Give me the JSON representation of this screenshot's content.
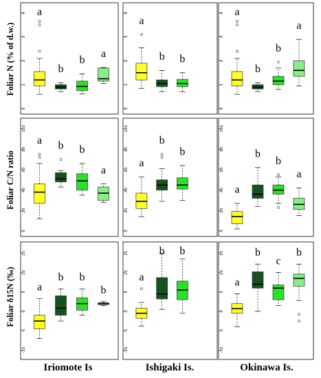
{
  "colors": {
    "yellow": "#ffff22",
    "darkgreen": "#14531c",
    "green": "#29e129",
    "lightgreen": "#88ee88"
  },
  "row_labels": [
    "Foliar N (% of d.w.)",
    "Foliar C/N ratio",
    "Foliar δ15N (‰)"
  ],
  "column_labels": [
    "Iriomote Is",
    "Ishigaki Is.",
    "Okinawa Is."
  ],
  "chart_data": [
    {
      "type": "box",
      "row": 0,
      "col": 0,
      "ylim": [
        0,
        4.2
      ],
      "yticks": [
        0,
        1,
        2,
        3,
        4
      ],
      "boxes": [
        {
          "color": "yellow",
          "whislo": 0.6,
          "q1": 0.95,
          "med": 1.2,
          "q3": 1.55,
          "whishi": 2.1,
          "fliers": [
            2.4,
            3.5,
            3.65
          ],
          "letter": "a"
        },
        {
          "color": "darkgreen",
          "whislo": 0.7,
          "q1": 0.82,
          "med": 0.9,
          "q3": 1.0,
          "whishi": 1.08,
          "fliers": [],
          "letter": "b"
        },
        {
          "color": "green",
          "whislo": 0.62,
          "q1": 0.75,
          "med": 0.93,
          "q3": 1.15,
          "whishi": 1.45,
          "fliers": [],
          "letter": "b"
        },
        {
          "color": "lightgreen",
          "whislo": 1.05,
          "q1": 1.15,
          "med": 1.25,
          "q3": 1.7,
          "whishi": 1.72,
          "fliers": [],
          "letter": "a"
        }
      ]
    },
    {
      "type": "box",
      "row": 0,
      "col": 1,
      "ylim": [
        0,
        4.2
      ],
      "yticks": [
        0,
        1,
        2,
        3,
        4
      ],
      "boxes": [
        {
          "color": "yellow",
          "whislo": 0.85,
          "q1": 1.2,
          "med": 1.5,
          "q3": 1.9,
          "whishi": 2.55,
          "fliers": [
            3.1
          ],
          "letter": "a"
        },
        {
          "color": "darkgreen",
          "whislo": 0.7,
          "q1": 0.92,
          "med": 1.05,
          "q3": 1.2,
          "whishi": 1.6,
          "fliers": [],
          "letter": "b"
        },
        {
          "color": "green",
          "whislo": 0.7,
          "q1": 0.92,
          "med": 1.05,
          "q3": 1.22,
          "whishi": 1.5,
          "fliers": [],
          "letter": "b"
        }
      ]
    },
    {
      "type": "box",
      "row": 0,
      "col": 2,
      "ylim": [
        0,
        4.2
      ],
      "yticks": [
        0,
        1,
        2,
        3,
        4
      ],
      "boxes": [
        {
          "color": "yellow",
          "whislo": 0.6,
          "q1": 0.95,
          "med": 1.2,
          "q3": 1.55,
          "whishi": 2.1,
          "fliers": [
            2.4,
            3.5,
            3.65
          ],
          "letter": "a"
        },
        {
          "color": "darkgreen",
          "whislo": 0.7,
          "q1": 0.82,
          "med": 0.9,
          "q3": 1.0,
          "whishi": 1.08,
          "fliers": [],
          "letter": "b"
        },
        {
          "color": "green",
          "whislo": 0.8,
          "q1": 1.0,
          "med": 1.15,
          "q3": 1.35,
          "whishi": 1.7,
          "fliers": [
            1.95
          ],
          "letter": "b"
        },
        {
          "color": "lightgreen",
          "whislo": 0.95,
          "q1": 1.35,
          "med": 1.6,
          "q3": 2.0,
          "whishi": 2.9,
          "fliers": [],
          "letter": "a"
        }
      ]
    },
    {
      "type": "box",
      "row": 1,
      "col": 0,
      "ylim": [
        0,
        105
      ],
      "yticks": [
        0,
        20,
        40,
        60,
        80,
        100
      ],
      "boxes": [
        {
          "color": "yellow",
          "whislo": 12,
          "q1": 27,
          "med": 38,
          "q3": 46,
          "whishi": 66,
          "fliers": [
            72,
            75
          ],
          "letter": "a"
        },
        {
          "color": "darkgreen",
          "whislo": 43,
          "q1": 48,
          "med": 51,
          "q3": 57,
          "whishi": 59,
          "fliers": [
            70
          ],
          "letter": "b"
        },
        {
          "color": "green",
          "whislo": 35,
          "q1": 40,
          "med": 49,
          "q3": 56,
          "whishi": 66,
          "fliers": [],
          "letter": "b"
        },
        {
          "color": "lightgreen",
          "whislo": 28,
          "q1": 30,
          "med": 37,
          "q3": 43,
          "whishi": 46,
          "fliers": [],
          "letter": "a"
        }
      ]
    },
    {
      "type": "box",
      "row": 1,
      "col": 1,
      "ylim": [
        0,
        105
      ],
      "yticks": [
        0,
        20,
        40,
        60,
        80,
        100
      ],
      "boxes": [
        {
          "color": "yellow",
          "whislo": 14,
          "q1": 22,
          "med": 29,
          "q3": 37,
          "whishi": 53,
          "fliers": [],
          "letter": "a"
        },
        {
          "color": "darkgreen",
          "whislo": 29,
          "q1": 40,
          "med": 45,
          "q3": 50,
          "whishi": 61,
          "fliers": [
            72,
            75
          ],
          "letter": "b"
        },
        {
          "color": "green",
          "whislo": 30,
          "q1": 41,
          "med": 45,
          "q3": 52,
          "whishi": 64,
          "fliers": [],
          "letter": "b"
        }
      ]
    },
    {
      "type": "box",
      "row": 1,
      "col": 2,
      "ylim": [
        0,
        105
      ],
      "yticks": [
        0,
        20,
        40,
        60,
        80,
        100
      ],
      "boxes": [
        {
          "color": "yellow",
          "whislo": 2,
          "q1": 7,
          "med": 14,
          "q3": 19,
          "whishi": 27,
          "fliers": [],
          "letter": "a"
        },
        {
          "color": "darkgreen",
          "whislo": 24,
          "q1": 32,
          "med": 36,
          "q3": 45,
          "whishi": 62,
          "fliers": [],
          "letter": "b"
        },
        {
          "color": "green",
          "whislo": 27,
          "q1": 36,
          "med": 40,
          "q3": 45,
          "whishi": 53,
          "fliers": [
            55,
            23
          ],
          "letter": "b"
        },
        {
          "color": "lightgreen",
          "whislo": 15,
          "q1": 21,
          "med": 26,
          "q3": 32,
          "whishi": 42,
          "fliers": [],
          "letter": "a"
        }
      ]
    },
    {
      "type": "box",
      "row": 2,
      "col": 0,
      "ylim": [
        -11,
        16.5
      ],
      "yticks": [
        -10,
        -5,
        0,
        5,
        10,
        15
      ],
      "boxes": [
        {
          "color": "yellow",
          "whislo": -7,
          "q1": -4.5,
          "med": -2.5,
          "q3": -1.0,
          "whishi": 3.3,
          "fliers": [],
          "letter": "a"
        },
        {
          "color": "darkgreen",
          "whislo": -2.5,
          "q1": -1.0,
          "med": 0.8,
          "q3": 4.0,
          "whishi": 5.8,
          "fliers": [],
          "letter": "b"
        },
        {
          "color": "green",
          "whislo": -1.0,
          "q1": 0.3,
          "med": 2.0,
          "q3": 3.5,
          "whishi": 5.8,
          "fliers": [],
          "letter": "b"
        },
        {
          "color": "lightgreen",
          "whislo": 1.5,
          "q1": 1.7,
          "med": 2.0,
          "q3": 2.2,
          "whishi": 2.5,
          "fliers": [],
          "letter": "b"
        }
      ]
    },
    {
      "type": "box",
      "row": 2,
      "col": 1,
      "ylim": [
        -11,
        16.5
      ],
      "yticks": [
        -10,
        -5,
        0,
        5,
        10,
        15
      ],
      "boxes": [
        {
          "color": "yellow",
          "whislo": -3.8,
          "q1": -1.8,
          "med": -0.5,
          "q3": 0.8,
          "whishi": 2.3,
          "fliers": [
            5.8
          ],
          "letter": "a"
        },
        {
          "color": "darkgreen",
          "whislo": 0.5,
          "q1": 3.2,
          "med": 4.5,
          "q3": 8.7,
          "whishi": 15.0,
          "fliers": [],
          "letter": "b"
        },
        {
          "color": "green",
          "whislo": -0.5,
          "q1": 3.0,
          "med": 5.5,
          "q3": 7.8,
          "whishi": 13.5,
          "fliers": [],
          "letter": "b"
        }
      ]
    },
    {
      "type": "box",
      "row": 2,
      "col": 2,
      "ylim": [
        -11,
        16.5
      ],
      "yticks": [
        -10,
        -5,
        0,
        5,
        10,
        15
      ],
      "boxes": [
        {
          "color": "yellow",
          "whislo": -4.0,
          "q1": -0.5,
          "med": 0.7,
          "q3": 2.0,
          "whishi": 4.5,
          "fliers": [],
          "letter": "a"
        },
        {
          "color": "darkgreen",
          "whislo": 0.0,
          "q1": 6.0,
          "med": 7.0,
          "q3": 10.2,
          "whishi": 12.2,
          "fliers": [],
          "letter": "b"
        },
        {
          "color": "green",
          "whislo": 1.5,
          "q1": 3.0,
          "med": 6.0,
          "q3": 6.8,
          "whishi": 10.0,
          "fliers": [],
          "letter": "c"
        },
        {
          "color": "lightgreen",
          "whislo": 2.8,
          "q1": 6.5,
          "med": 8.5,
          "q3": 9.6,
          "whishi": 12.2,
          "fliers": [
            -0.8,
            -2.5
          ],
          "letter": "b"
        }
      ]
    }
  ]
}
